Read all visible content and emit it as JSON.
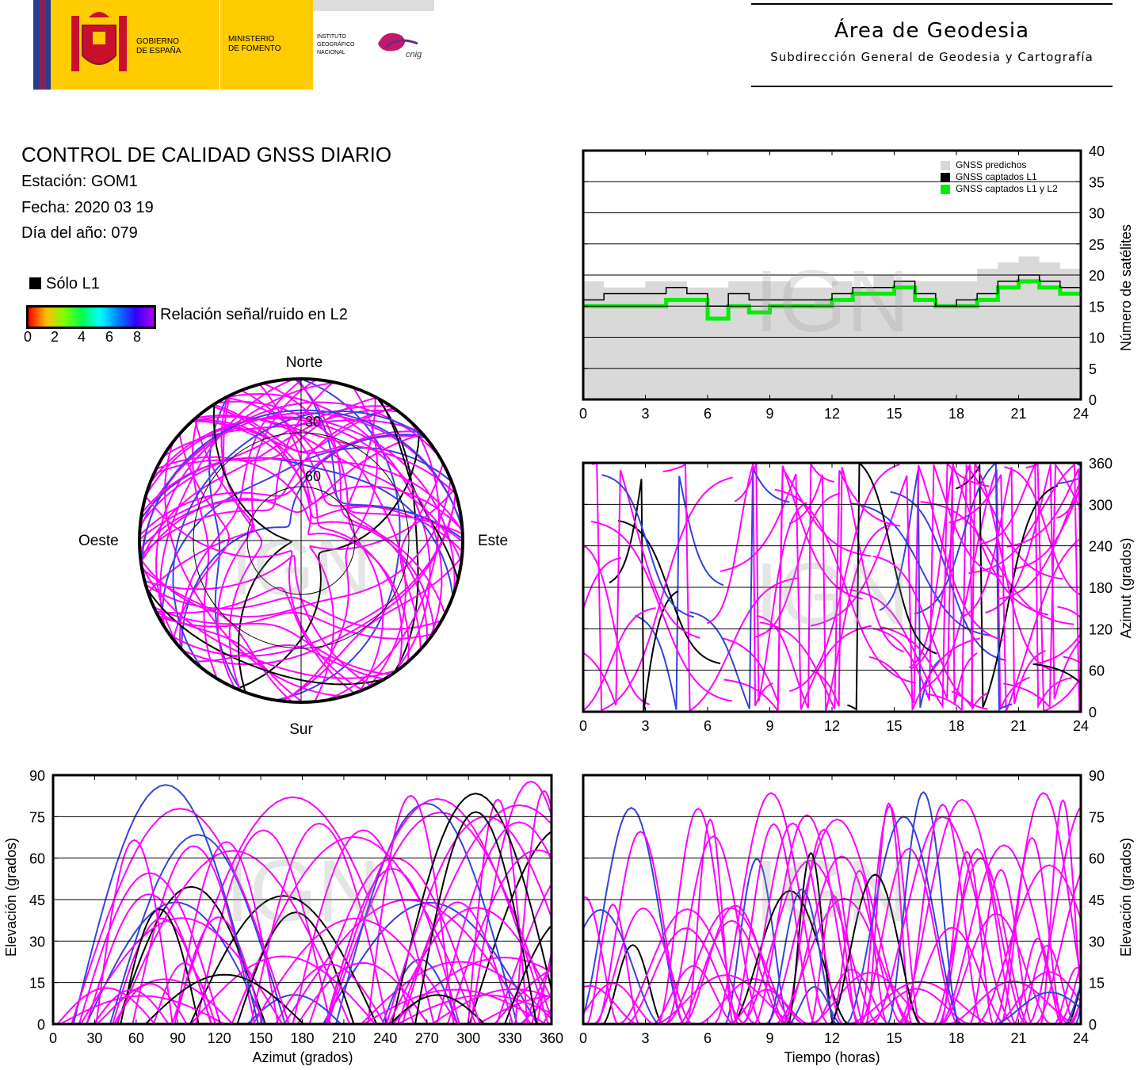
{
  "header": {
    "gov_label_1": "GOBIERNO",
    "gov_label_2": "DE ESPAÑA",
    "ministry_label_1": "MINISTERIO",
    "ministry_label_2": "DE FOMENTO",
    "institute_1": "INSTITUTO",
    "institute_2": "GEOGRÁFICO",
    "institute_3": "NACIONAL",
    "cnig": "cnig",
    "area_title": "Área de Geodesia",
    "area_subtitle": "Subdirección General de Geodesia y Cartografía"
  },
  "report": {
    "title": "CONTROL DE CALIDAD GNSS DIARIO",
    "station": "Estación: GOM1",
    "date": "Fecha: 2020 03 19",
    "doy": "Día del año: 079"
  },
  "legend": {
    "l1_only": "Sólo L1",
    "snr_label": "Relación señal/ruido en L2",
    "snr_ticks": [
      "0",
      "2",
      "4",
      "6",
      "8"
    ]
  },
  "watermark": "IGN",
  "colors": {
    "magenta": "#ff00ff",
    "blue": "#3344dd",
    "predicted": "#d9d9d9",
    "l1": "#000000",
    "l1l2": "#00ee00"
  },
  "chart_data": [
    {
      "id": "sat_count",
      "type": "area",
      "xlabel": "",
      "ylabel": "Número de satélites",
      "xlim": [
        0,
        24
      ],
      "ylim": [
        0,
        40
      ],
      "xticks": [
        "0",
        "3",
        "6",
        "9",
        "12",
        "15",
        "18",
        "21",
        "24"
      ],
      "yticks": [
        "0",
        "5",
        "10",
        "15",
        "20",
        "25",
        "30",
        "35",
        "40"
      ],
      "legend": [
        "GNSS predichos",
        "GNSS captados L1",
        "GNSS captados L1 y L2"
      ],
      "legend_position": "top-right",
      "grid": "horizontal",
      "x": [
        0,
        1,
        2,
        3,
        4,
        5,
        6,
        7,
        8,
        9,
        10,
        11,
        12,
        13,
        14,
        15,
        16,
        17,
        18,
        19,
        20,
        21,
        22,
        23,
        24
      ],
      "series": [
        {
          "name": "GNSS predichos",
          "values": [
            19,
            18,
            18,
            19,
            19,
            18,
            18,
            19,
            19,
            19,
            18,
            18,
            19,
            18,
            20,
            19,
            19,
            19,
            19,
            21,
            22,
            23,
            22,
            21,
            19
          ]
        },
        {
          "name": "GNSS captados L1",
          "values": [
            16,
            17,
            17,
            17,
            18,
            17,
            15,
            17,
            16,
            16,
            16,
            16,
            17,
            18,
            18,
            19,
            17,
            15,
            16,
            17,
            19,
            20,
            19,
            18,
            17
          ]
        },
        {
          "name": "GNSS captados L1 y L2",
          "values": [
            15,
            15,
            15,
            15,
            16,
            16,
            13,
            15,
            14,
            15,
            15,
            15,
            16,
            17,
            17,
            18,
            16,
            15,
            15,
            16,
            18,
            19,
            18,
            17,
            16
          ]
        }
      ]
    },
    {
      "id": "skyplot",
      "type": "scatter",
      "projection": "polar",
      "direction_labels": {
        "north": "Norte",
        "south": "Sur",
        "east": "Este",
        "west": "Oeste"
      },
      "ring_labels": [
        "30",
        "60"
      ]
    },
    {
      "id": "azimuth_time",
      "type": "scatter",
      "xlabel": "",
      "ylabel": "Azimut (grados)",
      "xlim": [
        0,
        24
      ],
      "ylim": [
        0,
        360
      ],
      "xticks": [
        "0",
        "3",
        "6",
        "9",
        "12",
        "15",
        "18",
        "21",
        "24"
      ],
      "yticks": [
        "0",
        "60",
        "120",
        "180",
        "240",
        "300",
        "360"
      ],
      "grid": "horizontal"
    },
    {
      "id": "elev_azimuth",
      "type": "scatter",
      "xlabel": "Azimut (grados)",
      "ylabel": "Elevación (grados)",
      "xlim": [
        0,
        360
      ],
      "ylim": [
        0,
        90
      ],
      "xticks": [
        "0",
        "30",
        "60",
        "90",
        "120",
        "150",
        "180",
        "210",
        "240",
        "270",
        "300",
        "330",
        "360"
      ],
      "yticks": [
        "0",
        "15",
        "30",
        "45",
        "60",
        "75",
        "90"
      ],
      "grid": "horizontal"
    },
    {
      "id": "elev_time",
      "type": "line",
      "xlabel": "Tiempo (horas)",
      "ylabel": "Elevación (grados)",
      "xlim": [
        0,
        24
      ],
      "ylim": [
        0,
        90
      ],
      "xticks": [
        "0",
        "3",
        "6",
        "9",
        "12",
        "15",
        "18",
        "21",
        "24"
      ],
      "yticks": [
        "0",
        "15",
        "30",
        "45",
        "60",
        "75",
        "90"
      ],
      "grid": "horizontal"
    }
  ]
}
